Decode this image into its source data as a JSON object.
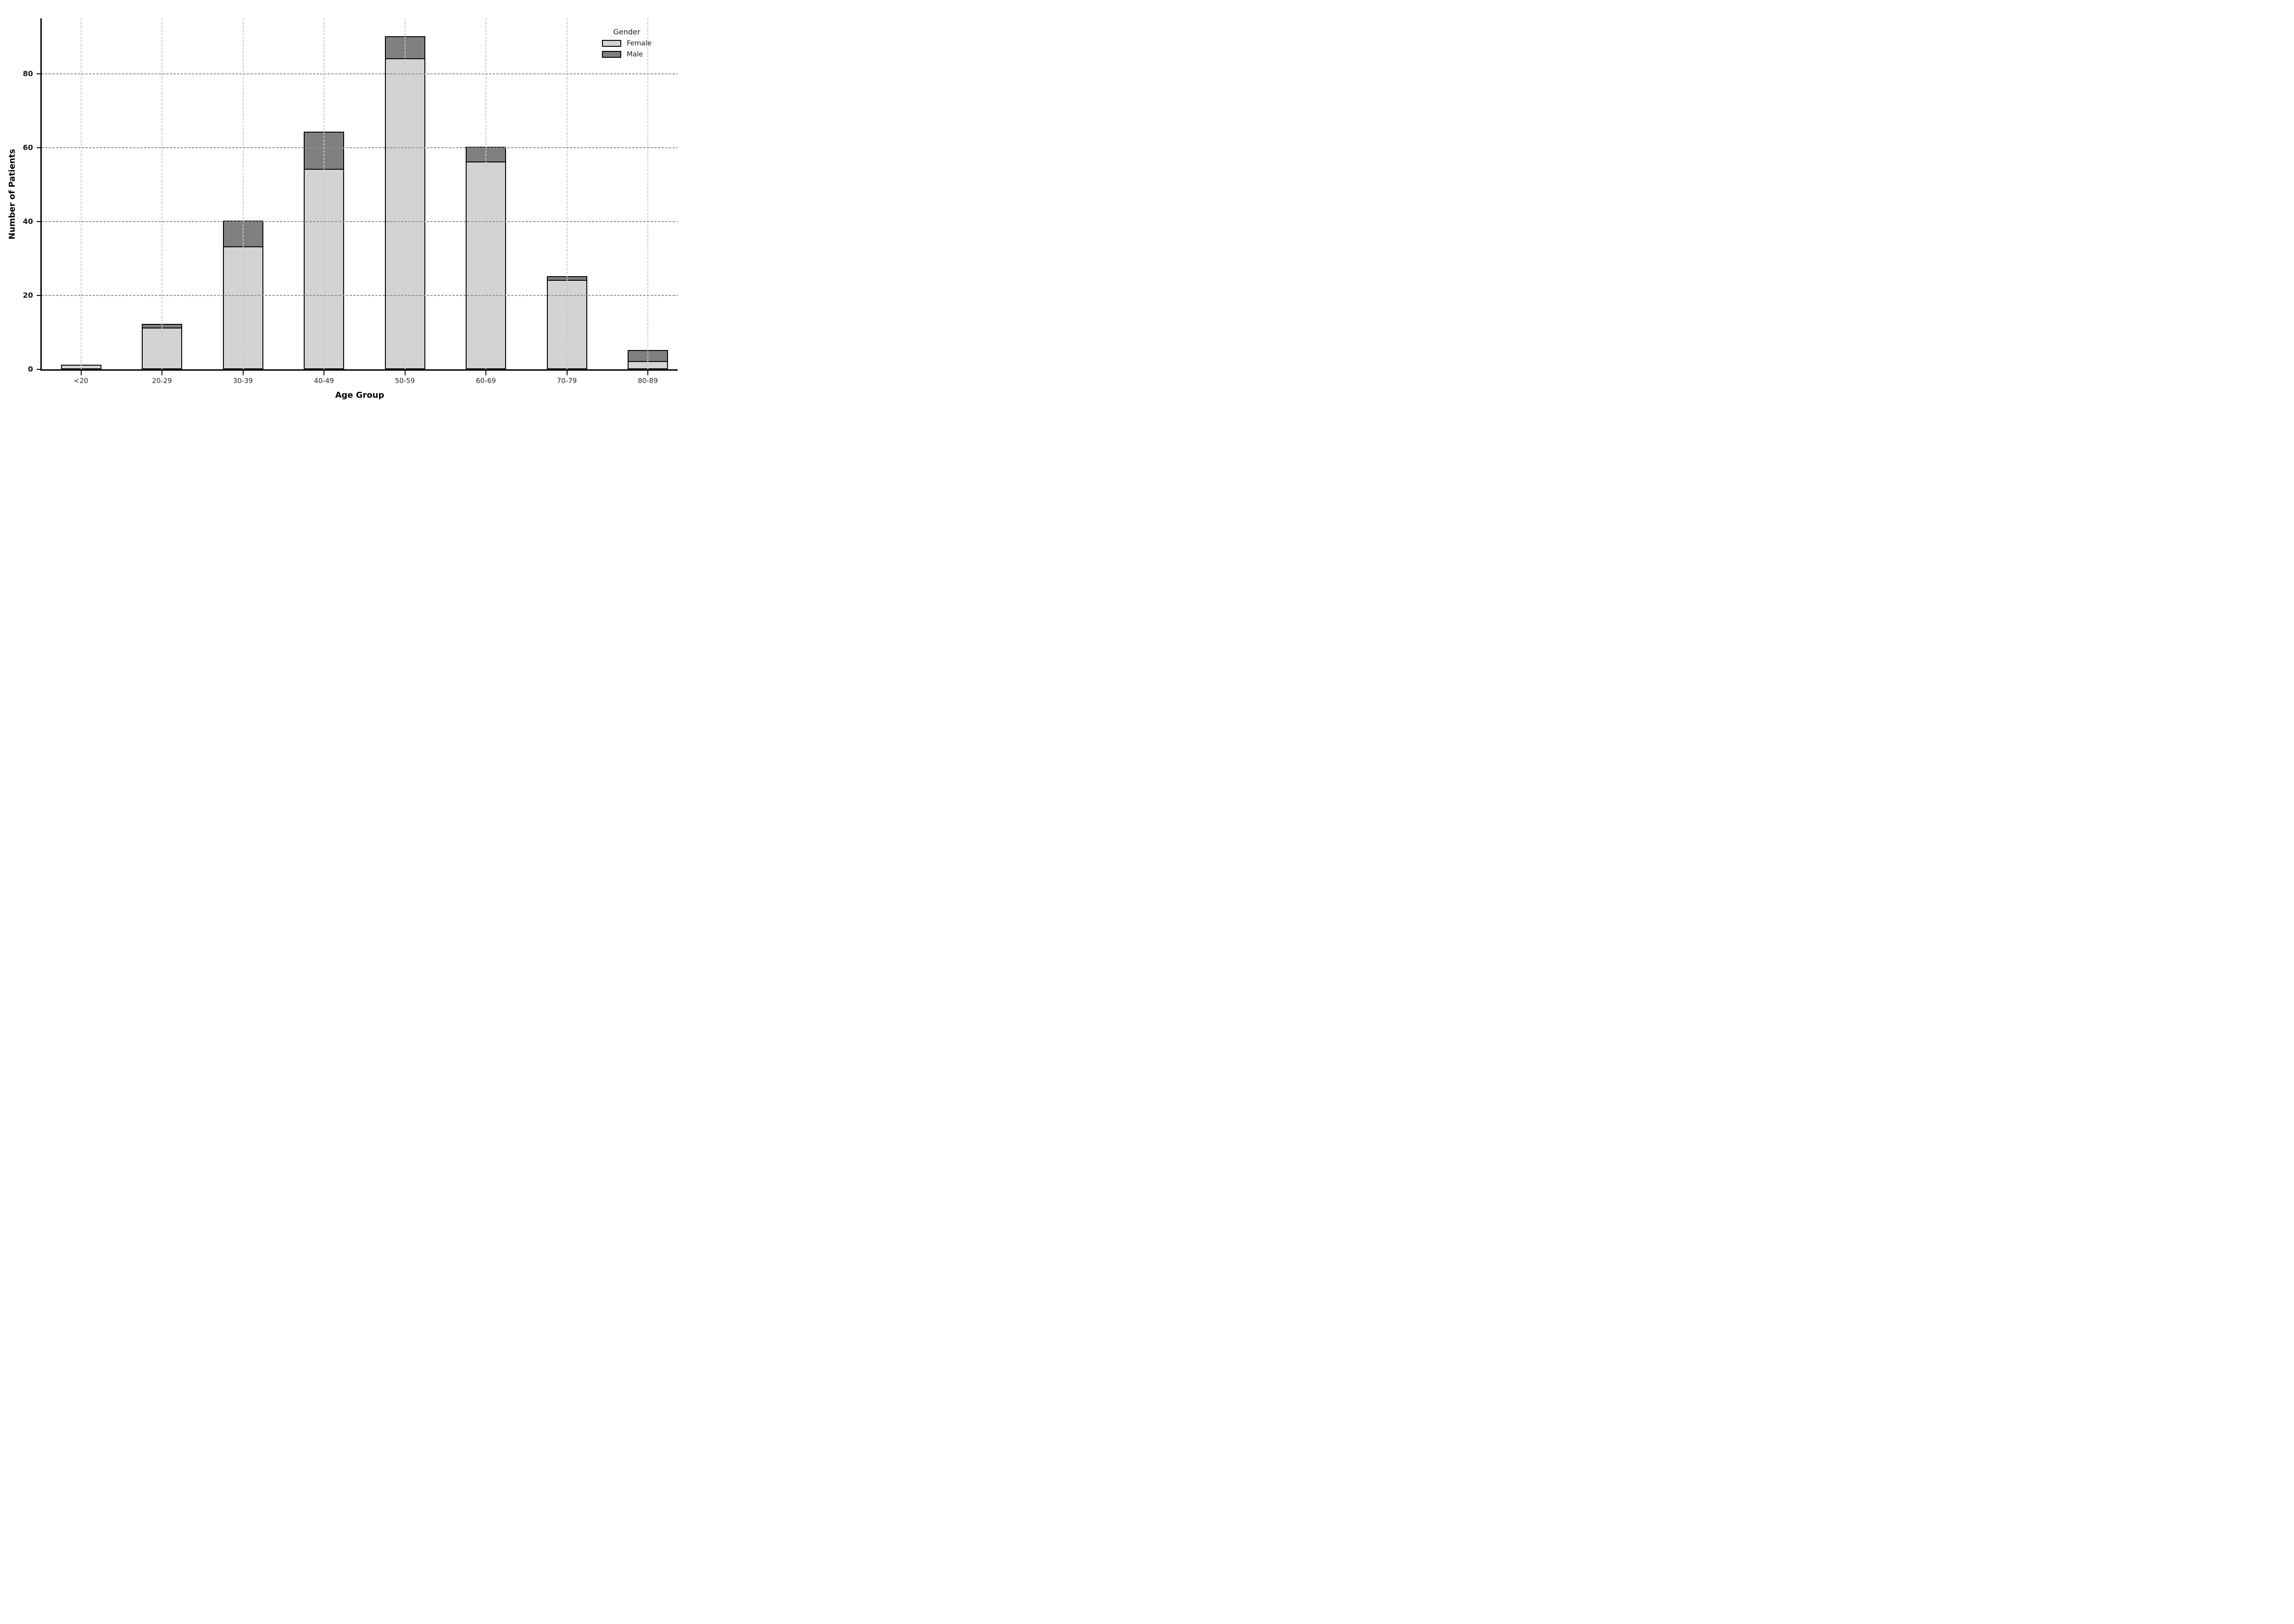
{
  "chart_data": {
    "type": "bar",
    "stacked": true,
    "title": "",
    "xlabel": "Age Group",
    "ylabel": "Number of Patients",
    "categories": [
      "<20",
      "20-29",
      "30-39",
      "40-49",
      "50-59",
      "60-69",
      "70-79",
      "80-89"
    ],
    "series": [
      {
        "name": "Female",
        "color": "#d3d3d3",
        "values": [
          1,
          11,
          33,
          54,
          84,
          56,
          24,
          2
        ]
      },
      {
        "name": "Male",
        "color": "#808080",
        "values": [
          0,
          1,
          7,
          10,
          6,
          4,
          1,
          3
        ]
      }
    ],
    "totals": [
      1,
      12,
      40,
      64,
      90,
      60,
      25,
      5
    ],
    "ylim": [
      0,
      95
    ],
    "yticks": [
      0,
      20,
      40,
      60,
      80
    ],
    "grid": {
      "style": "dashed",
      "horizontal": true,
      "vertical": true,
      "drawn_over_bars": true
    },
    "bar_edge_color": "#000000",
    "legend": {
      "title": "Gender",
      "position": "upper-right",
      "frame": false
    }
  }
}
